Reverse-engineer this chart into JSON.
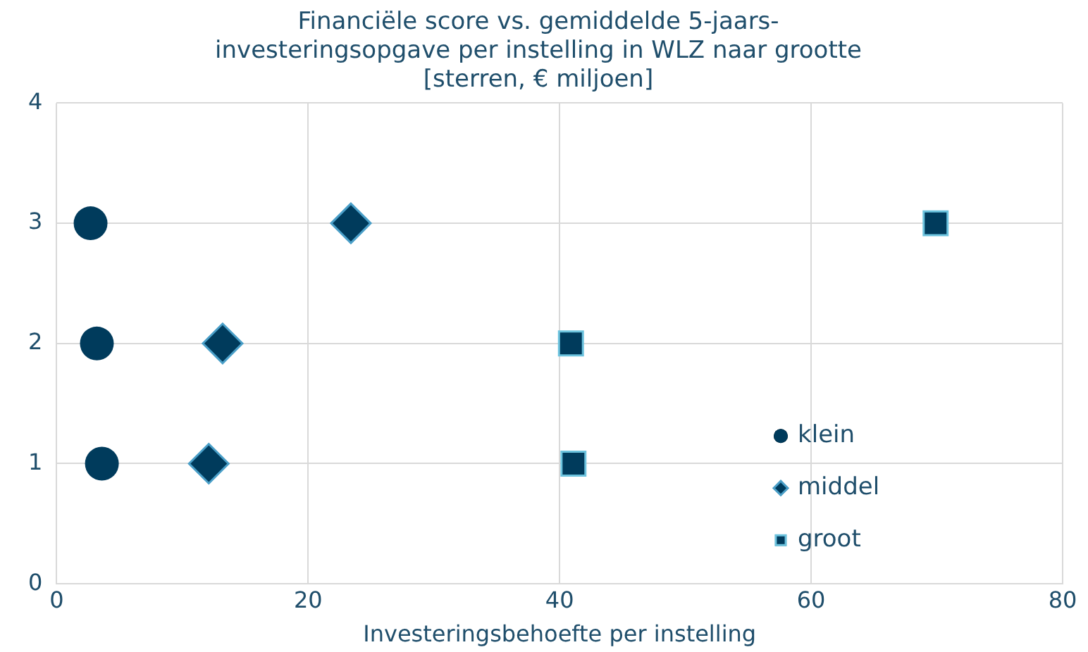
{
  "chart_data": {
    "type": "scatter",
    "title": "Financiële score vs. gemiddelde 5-jaars-\ninvesteringsopgave per instelling in WLZ naar grootte\n[sterren, € miljoen]",
    "xlabel": "Investeringsbehoefte per instelling",
    "xlim": [
      0,
      80
    ],
    "xticks": [
      0,
      20,
      40,
      60,
      80
    ],
    "ylim": [
      0,
      4
    ],
    "yticks": [
      0,
      1,
      2,
      3,
      4
    ],
    "grid": true,
    "legend": "bottom right",
    "series": [
      {
        "name": "klein",
        "color": "#003b5c",
        "marker": "circle",
        "x": [
          2.7,
          3.2,
          3.6
        ],
        "values": [
          3,
          2,
          1
        ]
      },
      {
        "name": "middel",
        "color": "#003b5c",
        "marker": "diamond",
        "x": [
          23.4,
          13.2,
          12.1
        ],
        "values": [
          3,
          2,
          1
        ]
      },
      {
        "name": "groot",
        "color": "#003b5c",
        "marker": "square",
        "x": [
          69.9,
          40.9,
          41.1
        ],
        "values": [
          3,
          2,
          1
        ]
      }
    ]
  }
}
